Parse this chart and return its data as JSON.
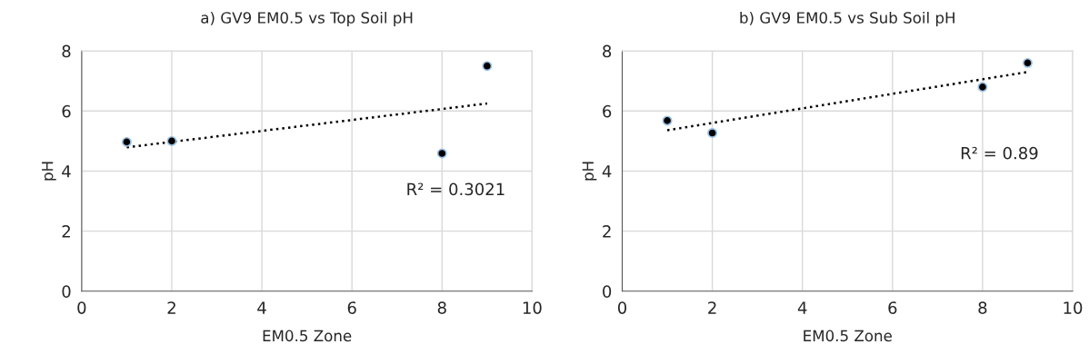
{
  "chart_data": [
    {
      "type": "scatter",
      "title": "a) GV9 EM0.5 vs Top Soil pH",
      "xlabel": "EM0.5 Zone",
      "ylabel": "pH",
      "xlim": [
        0,
        10
      ],
      "xticks": [
        0,
        2,
        4,
        6,
        8,
        10
      ],
      "ylim": [
        0,
        8
      ],
      "yticks": [
        0,
        2,
        4,
        6,
        8
      ],
      "grid": true,
      "marker": "circle",
      "annotations": [
        "R² = 0.3021"
      ],
      "series": [
        {
          "color": "#000000",
          "x": [
            1,
            2,
            8,
            9
          ],
          "values": [
            4.97,
            5.0,
            4.59,
            7.5
          ]
        },
        {
          "type": "line",
          "color": "#000000",
          "line_style": "dotted",
          "marker": "none",
          "x": [
            1,
            9
          ],
          "values": [
            4.79,
            6.25
          ]
        }
      ]
    },
    {
      "type": "scatter",
      "title": "b) GV9 EM0.5 vs Sub Soil pH",
      "xlabel": "EM0.5 Zone",
      "ylabel": "pH",
      "xlim": [
        0,
        10
      ],
      "xticks": [
        0,
        2,
        4,
        6,
        8,
        10
      ],
      "ylim": [
        0,
        8
      ],
      "yticks": [
        0,
        2,
        4,
        6,
        8
      ],
      "grid": true,
      "marker": "circle",
      "annotations": [
        "R² = 0.89"
      ],
      "series": [
        {
          "color": "#000000",
          "x": [
            1,
            2,
            8,
            9
          ],
          "values": [
            5.68,
            5.27,
            6.8,
            7.6
          ]
        },
        {
          "type": "line",
          "color": "#000000",
          "line_style": "dotted",
          "marker": "none",
          "x": [
            1,
            9
          ],
          "values": [
            5.36,
            7.3
          ]
        }
      ]
    }
  ]
}
